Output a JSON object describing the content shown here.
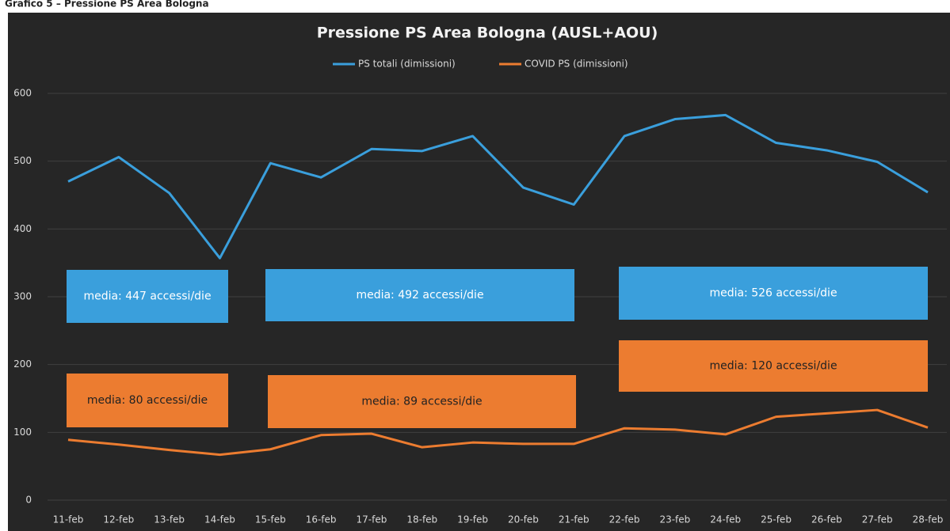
{
  "header": "Grafico 5 – Pressione PS Area Bologna",
  "chart_data": {
    "type": "line",
    "title": "Pressione PS Area Bologna (AUSL+AOU)",
    "categories": [
      "11-feb",
      "12-feb",
      "13-feb",
      "14-feb",
      "15-feb",
      "16-feb",
      "17-feb",
      "18-feb",
      "19-feb",
      "20-feb",
      "21-feb",
      "22-feb",
      "23-feb",
      "24-feb",
      "25-feb",
      "26-feb",
      "27-feb",
      "28-feb"
    ],
    "series": [
      {
        "name": "PS totali (dimissioni)",
        "color": "#3a9fdc",
        "values": [
          470,
          506,
          453,
          357,
          497,
          476,
          518,
          515,
          537,
          461,
          436,
          537,
          562,
          568,
          527,
          516,
          499,
          454
        ]
      },
      {
        "name": "COVID PS (dimissioni)",
        "color": "#ec7c30",
        "values": [
          89,
          82,
          74,
          67,
          75,
          96,
          98,
          78,
          85,
          83,
          83,
          106,
          104,
          97,
          123,
          128,
          133,
          107
        ]
      }
    ],
    "ylim": [
      0,
      600
    ],
    "yticks": [
      0,
      100,
      200,
      300,
      400,
      500,
      600
    ],
    "grid": true,
    "legend": "top",
    "annotations": [
      {
        "text": "media: 447 accessi/die",
        "color": "#3a9fdc"
      },
      {
        "text": "media: 492 accessi/die",
        "color": "#3a9fdc"
      },
      {
        "text": "media: 526 accessi/die",
        "color": "#3a9fdc"
      },
      {
        "text": "media: 80 accessi/die",
        "color": "#ec7c30"
      },
      {
        "text": "media: 89 accessi/die",
        "color": "#ec7c30"
      },
      {
        "text": "media: 120 accessi/die",
        "color": "#ec7c30"
      }
    ]
  }
}
